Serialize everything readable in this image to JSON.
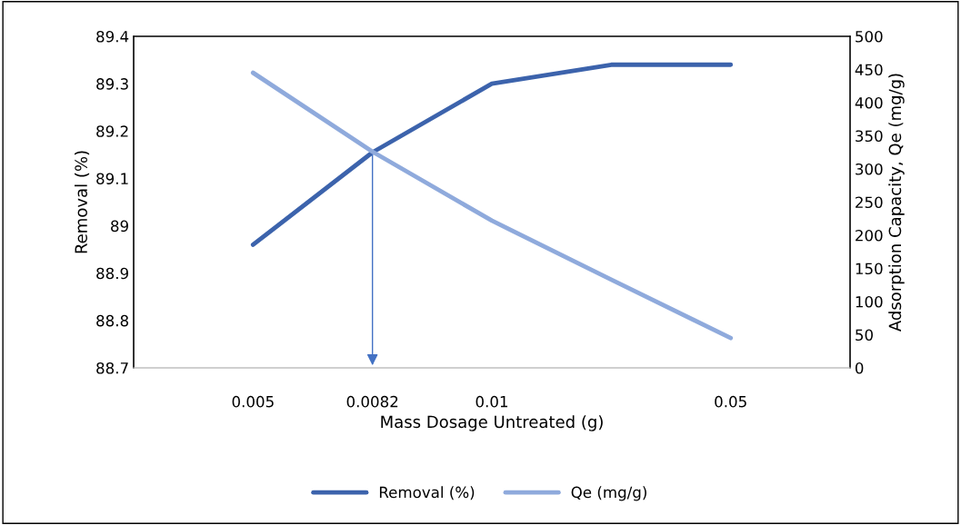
{
  "chart_data": {
    "type": "line",
    "xlabel": "Mass Dosage Untreated (g)",
    "ylabel": "Removal (%)",
    "y2label": "Adsorption Capacity, Qe (mg/g)",
    "categories": [
      null,
      "0.005",
      "0.0082",
      "0.01",
      null,
      "0.05"
    ],
    "series": [
      {
        "name": "Removal (%)",
        "color": "#3c63ac",
        "values": [
          null,
          88.96,
          89.155,
          89.3,
          89.34,
          89.34
        ]
      },
      {
        "name": "Qe (mg/g)",
        "color": "#8faadc",
        "values": [
          null,
          445,
          326,
          222,
          133,
          45
        ],
        "axis": "y2"
      }
    ],
    "ylim": [
      88.7,
      89.4
    ],
    "yticks": [
      88.7,
      88.8,
      88.9,
      89,
      89.1,
      89.2,
      89.3,
      89.4
    ],
    "y2lim": [
      0,
      500
    ],
    "y2ticks": [
      0,
      50,
      100,
      150,
      200,
      250,
      300,
      350,
      400,
      450,
      500
    ],
    "grid": false,
    "legend": "bottom",
    "marker": "none",
    "line_style": "solid"
  }
}
